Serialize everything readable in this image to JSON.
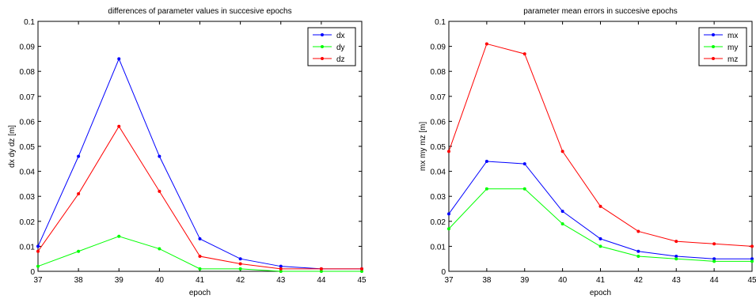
{
  "chart_data": [
    {
      "type": "line",
      "title": "differences of parameter values in succesive epochs",
      "xlabel": "epoch",
      "ylabel": "dx dy dz [m]",
      "x": [
        37,
        38,
        39,
        40,
        41,
        42,
        43,
        44,
        45
      ],
      "xlim": [
        37,
        45
      ],
      "ylim": [
        0,
        0.1
      ],
      "xticks": [
        "37",
        "38",
        "39",
        "40",
        "41",
        "42",
        "43",
        "44",
        "45"
      ],
      "yticks": [
        "0",
        "0.01",
        "0.02",
        "0.03",
        "0.04",
        "0.05",
        "0.06",
        "0.07",
        "0.08",
        "0.09",
        "0.1"
      ],
      "grid": false,
      "legend_position": "top-right",
      "series": [
        {
          "name": "dx",
          "color": "#0000ff",
          "values": [
            0.01,
            0.046,
            0.085,
            0.046,
            0.013,
            0.005,
            0.002,
            0.001,
            0.001
          ]
        },
        {
          "name": "dy",
          "color": "#00ff00",
          "values": [
            0.002,
            0.008,
            0.014,
            0.009,
            0.001,
            0.001,
            0.0,
            0.0,
            0.0
          ]
        },
        {
          "name": "dz",
          "color": "#ff0000",
          "values": [
            0.008,
            0.031,
            0.058,
            0.032,
            0.006,
            0.003,
            0.001,
            0.001,
            0.001
          ]
        }
      ]
    },
    {
      "type": "line",
      "title": "parameter mean errors in succesive epochs",
      "xlabel": "epoch",
      "ylabel": "mx my mz [m]",
      "x": [
        37,
        38,
        39,
        40,
        41,
        42,
        43,
        44,
        45
      ],
      "xlim": [
        37,
        45
      ],
      "ylim": [
        0,
        0.1
      ],
      "xticks": [
        "37",
        "38",
        "39",
        "40",
        "41",
        "42",
        "43",
        "44",
        "45"
      ],
      "yticks": [
        "0",
        "0.01",
        "0.02",
        "0.03",
        "0.04",
        "0.05",
        "0.06",
        "0.07",
        "0.08",
        "0.09",
        "0.1"
      ],
      "grid": false,
      "legend_position": "top-right",
      "series": [
        {
          "name": "mx",
          "color": "#0000ff",
          "values": [
            0.023,
            0.044,
            0.043,
            0.024,
            0.013,
            0.008,
            0.006,
            0.005,
            0.005
          ]
        },
        {
          "name": "my",
          "color": "#00ff00",
          "values": [
            0.017,
            0.033,
            0.033,
            0.019,
            0.01,
            0.006,
            0.005,
            0.004,
            0.004
          ]
        },
        {
          "name": "mz",
          "color": "#ff0000",
          "values": [
            0.048,
            0.091,
            0.087,
            0.048,
            0.026,
            0.016,
            0.012,
            0.011,
            0.01
          ]
        }
      ]
    }
  ]
}
